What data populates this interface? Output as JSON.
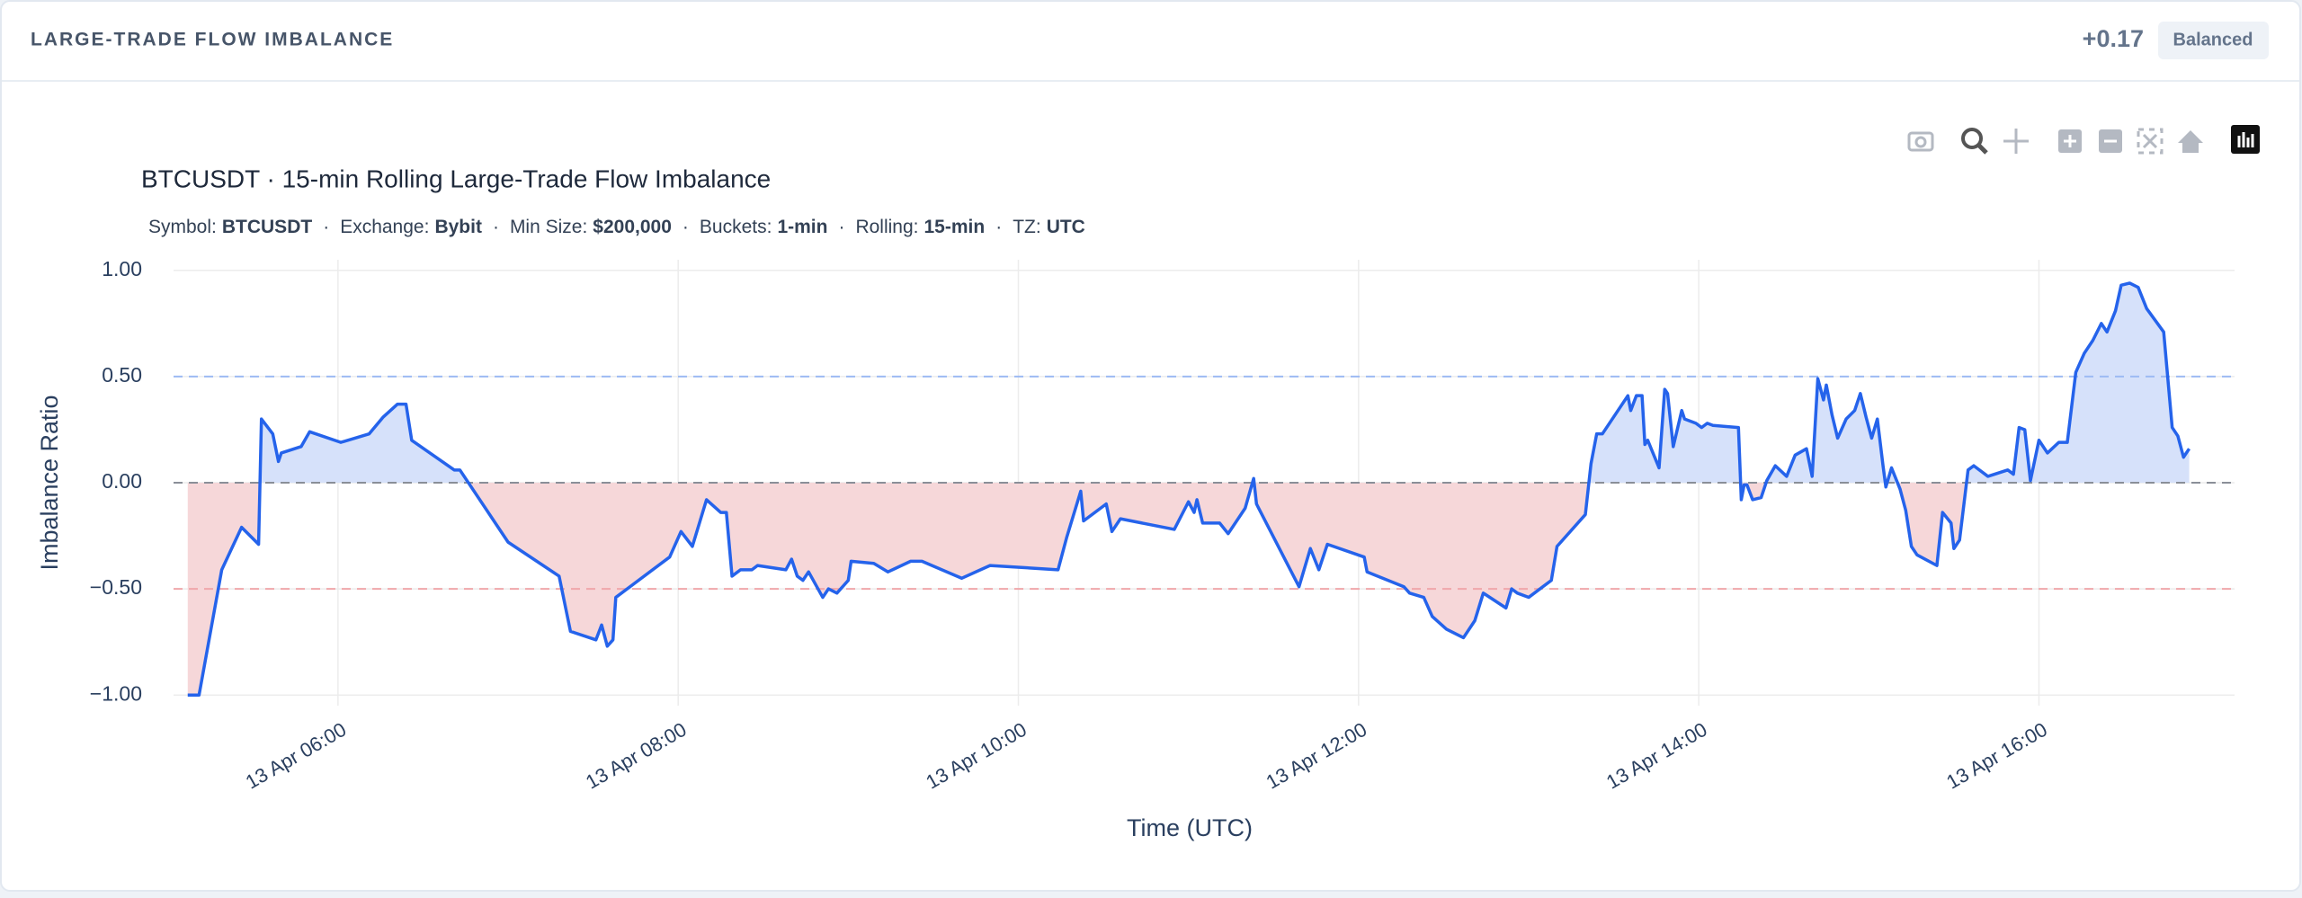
{
  "header": {
    "title": "LARGE-TRADE FLOW IMBALANCE",
    "value": "+0.17",
    "badge": "Balanced"
  },
  "chart_data": {
    "type": "line",
    "title": "BTCUSDT · 15-min Rolling Large-Trade Flow Imbalance",
    "subtitle": [
      {
        "label": "Symbol:",
        "value": "BTCUSDT"
      },
      {
        "label": "Exchange:",
        "value": "Bybit"
      },
      {
        "label": "Min Size:",
        "value": "$200,000"
      },
      {
        "label": "Buckets:",
        "value": "1-min"
      },
      {
        "label": "Rolling:",
        "value": "15-min"
      },
      {
        "label": "TZ:",
        "value": "UTC"
      }
    ],
    "subtitle_separator": "·",
    "x_label": "Time (UTC)",
    "y_label": "Imbalance Ratio",
    "xlim": [
      "13 Apr 05:02",
      "13 Apr 17:09"
    ],
    "xticks": [
      "13 Apr 06:00",
      "13 Apr 08:00",
      "13 Apr 10:00",
      "13 Apr 12:00",
      "13 Apr 14:00",
      "13 Apr 16:00"
    ],
    "ylim": [
      -1.05,
      1.05
    ],
    "yticks": [
      {
        "value": 1,
        "label": "1.00"
      },
      {
        "value": 0.5,
        "label": "0.50"
      },
      {
        "value": 0,
        "label": "0.00"
      },
      {
        "value": -0.5,
        "label": "−0.50"
      },
      {
        "value": -1,
        "label": "−1.00"
      }
    ],
    "grid": true,
    "reference_lines": [
      {
        "value": 0.5,
        "color": "#9dbaf3"
      },
      {
        "value": -0.5,
        "color": "#f0a7ab"
      },
      {
        "value": 0,
        "color": "#8a8f98"
      }
    ],
    "positive_fill": "#d6e1fa",
    "negative_fill": "#f6d7d9",
    "x": [
      "13 Apr 05:07",
      "13 Apr 05:11",
      "13 Apr 05:19",
      "13 Apr 05:26",
      "13 Apr 05:32",
      "13 Apr 05:33",
      "13 Apr 05:37",
      "13 Apr 05:39",
      "13 Apr 05:40",
      "13 Apr 05:47",
      "13 Apr 05:50",
      "13 Apr 06:01",
      "13 Apr 06:11",
      "13 Apr 06:16",
      "13 Apr 06:21",
      "13 Apr 06:24",
      "13 Apr 06:26",
      "13 Apr 06:41",
      "13 Apr 06:43",
      "13 Apr 07:00",
      "13 Apr 07:18",
      "13 Apr 07:22",
      "13 Apr 07:31",
      "13 Apr 07:33",
      "13 Apr 07:35",
      "13 Apr 07:37",
      "13 Apr 07:38",
      "13 Apr 07:43",
      "13 Apr 07:57",
      "13 Apr 08:01",
      "13 Apr 08:05",
      "13 Apr 08:10",
      "13 Apr 08:15",
      "13 Apr 08:17",
      "13 Apr 08:19",
      "13 Apr 08:22",
      "13 Apr 08:26",
      "13 Apr 08:28",
      "13 Apr 08:38",
      "13 Apr 08:40",
      "13 Apr 08:42",
      "13 Apr 08:44",
      "13 Apr 08:46",
      "13 Apr 08:51",
      "13 Apr 08:53",
      "13 Apr 08:56",
      "13 Apr 09:00",
      "13 Apr 09:01",
      "13 Apr 09:09",
      "13 Apr 09:14",
      "13 Apr 09:22",
      "13 Apr 09:26",
      "13 Apr 09:40",
      "13 Apr 09:50",
      "13 Apr 10:14",
      "13 Apr 10:17",
      "13 Apr 10:22",
      "13 Apr 10:23",
      "13 Apr 10:31",
      "13 Apr 10:33",
      "13 Apr 10:36",
      "13 Apr 10:55",
      "13 Apr 11:00",
      "13 Apr 11:02",
      "13 Apr 11:03",
      "13 Apr 11:05",
      "13 Apr 11:11",
      "13 Apr 11:14",
      "13 Apr 11:20",
      "13 Apr 11:23",
      "13 Apr 11:24",
      "13 Apr 11:39",
      "13 Apr 11:43",
      "13 Apr 11:46",
      "13 Apr 11:49",
      "13 Apr 12:02",
      "13 Apr 12:03",
      "13 Apr 12:16",
      "13 Apr 12:18",
      "13 Apr 12:23",
      "13 Apr 12:26",
      "13 Apr 12:31",
      "13 Apr 12:37",
      "13 Apr 12:41",
      "13 Apr 12:44",
      "13 Apr 12:52",
      "13 Apr 12:54",
      "13 Apr 12:56",
      "13 Apr 13:00",
      "13 Apr 13:08",
      "13 Apr 13:10",
      "13 Apr 13:20",
      "13 Apr 13:22",
      "13 Apr 13:24",
      "13 Apr 13:26",
      "13 Apr 13:35",
      "13 Apr 13:36",
      "13 Apr 13:38",
      "13 Apr 13:40",
      "13 Apr 13:41",
      "13 Apr 13:42",
      "13 Apr 13:46",
      "13 Apr 13:48",
      "13 Apr 13:49",
      "13 Apr 13:51",
      "13 Apr 13:54",
      "13 Apr 13:55",
      "13 Apr 13:59",
      "13 Apr 14:01",
      "13 Apr 14:03",
      "13 Apr 14:05",
      "13 Apr 14:14",
      "13 Apr 14:15",
      "13 Apr 14:16",
      "13 Apr 14:17",
      "13 Apr 14:19",
      "13 Apr 14:22",
      "13 Apr 14:24",
      "13 Apr 14:27",
      "13 Apr 14:31",
      "13 Apr 14:34",
      "13 Apr 14:38",
      "13 Apr 14:40",
      "13 Apr 14:42",
      "13 Apr 14:44",
      "13 Apr 14:45",
      "13 Apr 14:47",
      "13 Apr 14:49",
      "13 Apr 14:52",
      "13 Apr 14:55",
      "13 Apr 14:57",
      "13 Apr 14:59",
      "13 Apr 15:01",
      "13 Apr 15:03",
      "13 Apr 15:05",
      "13 Apr 15:06",
      "13 Apr 15:08",
      "13 Apr 15:11",
      "13 Apr 15:13",
      "13 Apr 15:15",
      "13 Apr 15:17",
      "13 Apr 15:24",
      "13 Apr 15:26",
      "13 Apr 15:29",
      "13 Apr 15:30",
      "13 Apr 15:32",
      "13 Apr 15:35",
      "13 Apr 15:37",
      "13 Apr 15:42",
      "13 Apr 15:49",
      "13 Apr 15:51",
      "13 Apr 15:53",
      "13 Apr 15:55",
      "13 Apr 15:57",
      "13 Apr 16:00",
      "13 Apr 16:03",
      "13 Apr 16:07",
      "13 Apr 16:10",
      "13 Apr 16:13",
      "13 Apr 16:16",
      "13 Apr 16:19",
      "13 Apr 16:22",
      "13 Apr 16:24",
      "13 Apr 16:27",
      "13 Apr 16:29",
      "13 Apr 16:32",
      "13 Apr 16:35",
      "13 Apr 16:38",
      "13 Apr 16:44",
      "13 Apr 16:47",
      "13 Apr 16:49",
      "13 Apr 16:51",
      "13 Apr 16:53"
    ],
    "series": [
      {
        "name": "Imbalance",
        "color": "#2563eb",
        "values": [
          -1.0,
          -1.0,
          -0.41,
          -0.21,
          -0.29,
          0.3,
          0.23,
          0.1,
          0.14,
          0.17,
          0.24,
          0.19,
          0.23,
          0.31,
          0.37,
          0.37,
          0.2,
          0.06,
          0.06,
          -0.28,
          -0.44,
          -0.7,
          -0.74,
          -0.67,
          -0.77,
          -0.74,
          -0.54,
          -0.49,
          -0.35,
          -0.23,
          -0.3,
          -0.08,
          -0.14,
          -0.14,
          -0.44,
          -0.41,
          -0.41,
          -0.39,
          -0.41,
          -0.36,
          -0.44,
          -0.46,
          -0.42,
          -0.54,
          -0.5,
          -0.52,
          -0.46,
          -0.37,
          -0.38,
          -0.42,
          -0.37,
          -0.37,
          -0.45,
          -0.39,
          -0.41,
          -0.26,
          -0.04,
          -0.18,
          -0.1,
          -0.23,
          -0.17,
          -0.22,
          -0.09,
          -0.14,
          -0.08,
          -0.19,
          -0.19,
          -0.24,
          -0.12,
          0.02,
          -0.1,
          -0.49,
          -0.31,
          -0.41,
          -0.29,
          -0.35,
          -0.42,
          -0.49,
          -0.52,
          -0.54,
          -0.63,
          -0.69,
          -0.73,
          -0.65,
          -0.52,
          -0.59,
          -0.5,
          -0.52,
          -0.54,
          -0.46,
          -0.3,
          -0.15,
          0.09,
          0.23,
          0.23,
          0.41,
          0.34,
          0.41,
          0.41,
          0.18,
          0.2,
          0.07,
          0.44,
          0.42,
          0.17,
          0.34,
          0.3,
          0.28,
          0.26,
          0.28,
          0.27,
          0.26,
          -0.08,
          -0.01,
          -0.01,
          -0.08,
          -0.07,
          0.01,
          0.08,
          0.03,
          0.13,
          0.16,
          0.03,
          0.49,
          0.39,
          0.46,
          0.32,
          0.21,
          0.3,
          0.34,
          0.42,
          0.31,
          0.21,
          0.3,
          0.08,
          -0.02,
          0.07,
          -0.03,
          -0.13,
          -0.3,
          -0.34,
          -0.39,
          -0.14,
          -0.19,
          -0.31,
          -0.27,
          0.06,
          0.08,
          0.03,
          0.06,
          0.04,
          0.26,
          0.25,
          0.01,
          0.2,
          0.14,
          0.19,
          0.19,
          0.52,
          0.61,
          0.67,
          0.75,
          0.71,
          0.81,
          0.93,
          0.94,
          0.92,
          0.82,
          0.71,
          0.26,
          0.22,
          0.12,
          0.16
        ]
      }
    ]
  }
}
